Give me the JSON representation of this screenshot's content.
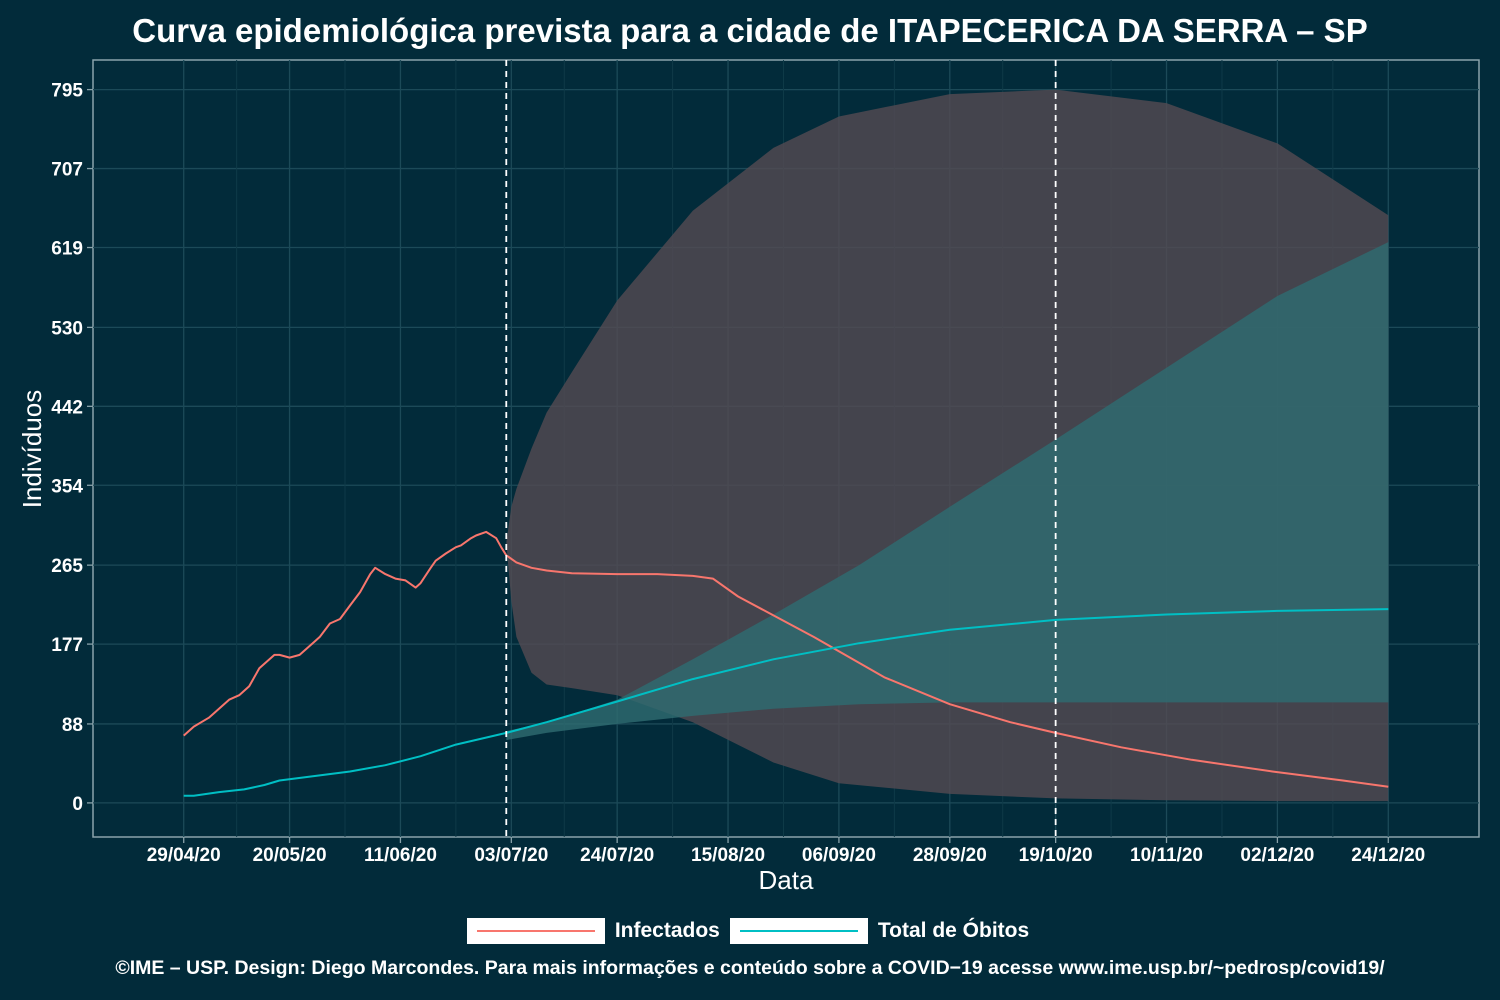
{
  "chart_data": {
    "type": "line",
    "title": "Curva epidemiológica prevista para a cidade de ITAPECERICA DA SERRA – SP",
    "xlabel": "Data",
    "ylabel": "Indivíduos",
    "x_start": "2020-04-29",
    "x_end": "2020-12-24",
    "x_range": [
      "2020-04-11",
      "2021-01-11"
    ],
    "ylim": [
      -38,
      828
    ],
    "x_ticks": [
      "29/04/20",
      "20/05/20",
      "11/06/20",
      "03/07/20",
      "24/07/20",
      "15/08/20",
      "06/09/20",
      "28/09/20",
      "19/10/20",
      "10/11/20",
      "02/12/20",
      "24/12/20"
    ],
    "x_tick_dates": [
      "2020-04-29",
      "2020-05-20",
      "2020-06-11",
      "2020-07-03",
      "2020-07-24",
      "2020-08-15",
      "2020-09-06",
      "2020-09-28",
      "2020-10-19",
      "2020-11-10",
      "2020-12-02",
      "2020-12-24"
    ],
    "y_ticks": [
      0,
      88,
      177,
      265,
      354,
      442,
      530,
      619,
      707,
      795
    ],
    "vlines": [
      "2020-07-02",
      "2020-10-19"
    ],
    "grid": true,
    "legend_position": "bottom",
    "series": [
      {
        "name": "Infectados",
        "color": "#f8766d",
        "x": [
          "2020-04-29",
          "2020-05-01",
          "2020-05-04",
          "2020-05-06",
          "2020-05-08",
          "2020-05-10",
          "2020-05-12",
          "2020-05-14",
          "2020-05-17",
          "2020-05-18",
          "2020-05-20",
          "2020-05-22",
          "2020-05-25",
          "2020-05-26",
          "2020-05-28",
          "2020-05-30",
          "2020-06-01",
          "2020-06-03",
          "2020-06-05",
          "2020-06-06",
          "2020-06-08",
          "2020-06-10",
          "2020-06-12",
          "2020-06-14",
          "2020-06-15",
          "2020-06-17",
          "2020-06-18",
          "2020-06-20",
          "2020-06-22",
          "2020-06-23",
          "2020-06-25",
          "2020-06-26",
          "2020-06-28",
          "2020-06-30",
          "2020-07-01",
          "2020-07-02",
          "2020-07-04",
          "2020-07-07",
          "2020-07-10",
          "2020-07-15",
          "2020-07-24",
          "2020-08-01",
          "2020-08-08",
          "2020-08-12",
          "2020-08-17",
          "2020-09-01",
          "2020-09-15",
          "2020-09-28",
          "2020-10-10",
          "2020-10-19",
          "2020-11-01",
          "2020-11-15",
          "2020-12-01",
          "2020-12-15",
          "2020-12-24"
        ],
        "y": [
          75,
          85,
          95,
          105,
          115,
          120,
          130,
          150,
          165,
          165,
          162,
          165,
          180,
          185,
          200,
          205,
          220,
          235,
          255,
          262,
          255,
          250,
          248,
          240,
          245,
          262,
          270,
          278,
          285,
          287,
          295,
          298,
          302,
          295,
          285,
          276,
          268,
          262,
          259,
          256,
          255,
          255,
          253,
          250,
          230,
          185,
          140,
          110,
          90,
          78,
          62,
          48,
          35,
          25,
          18
        ]
      },
      {
        "name": "Total de Óbitos",
        "color": "#00bfc4",
        "x": [
          "2020-04-29",
          "2020-05-01",
          "2020-05-06",
          "2020-05-11",
          "2020-05-15",
          "2020-05-18",
          "2020-05-25",
          "2020-06-01",
          "2020-06-08",
          "2020-06-15",
          "2020-06-22",
          "2020-07-02",
          "2020-07-10",
          "2020-07-24",
          "2020-08-08",
          "2020-08-24",
          "2020-09-10",
          "2020-09-28",
          "2020-10-19",
          "2020-11-10",
          "2020-12-02",
          "2020-12-24"
        ],
        "y": [
          8,
          8,
          12,
          15,
          20,
          25,
          30,
          35,
          42,
          52,
          65,
          78,
          90,
          113,
          138,
          160,
          178,
          193,
          204,
          210,
          214,
          216
        ]
      }
    ],
    "bands": [
      {
        "series": "Infectados",
        "color": "#534b52",
        "x": [
          "2020-07-02",
          "2020-07-03",
          "2020-07-04",
          "2020-07-07",
          "2020-07-10",
          "2020-07-15",
          "2020-07-24",
          "2020-08-08",
          "2020-08-24",
          "2020-09-06",
          "2020-09-28",
          "2020-10-19",
          "2020-11-10",
          "2020-12-02",
          "2020-12-24"
        ],
        "upper": [
          290,
          330,
          350,
          395,
          435,
          480,
          560,
          660,
          730,
          765,
          790,
          795,
          780,
          735,
          655
        ],
        "lower": [
          290,
          225,
          185,
          145,
          132,
          128,
          120,
          90,
          45,
          22,
          10,
          5,
          3,
          2,
          2
        ]
      },
      {
        "series": "Total de Óbitos",
        "color": "#2e6b70",
        "x": [
          "2020-07-02",
          "2020-07-10",
          "2020-07-24",
          "2020-08-08",
          "2020-08-24",
          "2020-09-10",
          "2020-09-28",
          "2020-10-19",
          "2020-11-10",
          "2020-12-02",
          "2020-12-24"
        ],
        "upper": [
          80,
          90,
          115,
          160,
          210,
          265,
          330,
          405,
          485,
          565,
          625
        ],
        "lower": [
          70,
          78,
          88,
          97,
          105,
          110,
          112,
          112,
          112,
          112,
          112
        ]
      }
    ]
  },
  "legend": {
    "infectados": "Infectados",
    "obitos": "Total de Óbitos"
  },
  "caption": "©IME – USP. Design: Diego Marcondes. Para mais informações e conteúdo sobre a COVID−19 acesse www.ime.usp.br/~pedrosp/covid19/"
}
